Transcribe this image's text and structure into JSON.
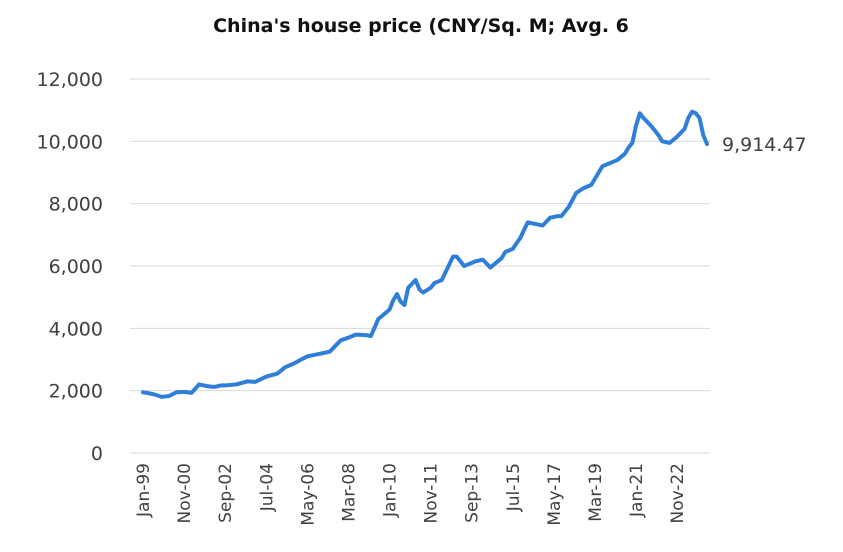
{
  "chart_data": {
    "type": "line",
    "title": "China's house price (CNY/Sq. M; Avg. 6",
    "categories": [
      "Jan-99",
      null,
      null,
      null,
      null,
      null,
      null,
      null,
      null,
      null,
      null,
      "Nov-00",
      null,
      null,
      null,
      null,
      null,
      null,
      null,
      null,
      null,
      null,
      "Sep-02",
      null,
      null,
      null,
      null,
      null,
      null,
      null,
      null,
      null,
      null,
      "Jul-04",
      null,
      null,
      null,
      null,
      null,
      null,
      null,
      null,
      null,
      null,
      "May-06",
      null,
      null,
      null,
      null,
      null,
      null,
      null,
      null,
      null,
      null,
      "Mar-08",
      null,
      null,
      null,
      null,
      null,
      null,
      null,
      null,
      null,
      null,
      "Jan-10",
      null,
      null,
      null,
      null,
      null,
      null,
      null,
      null,
      null,
      null,
      "Nov-11",
      null,
      null,
      null,
      null,
      null,
      null,
      null,
      null,
      null,
      null,
      "Sep-13",
      null,
      null,
      null,
      null,
      null,
      null,
      null,
      null,
      null,
      null,
      "Jul-15",
      null,
      null,
      null,
      null,
      null,
      null,
      null,
      null,
      null,
      null,
      "May-17",
      null,
      null,
      null,
      null,
      null,
      null,
      null,
      null,
      null,
      null,
      "Mar-19",
      null,
      null,
      null,
      null,
      null,
      null,
      null,
      null,
      null,
      null,
      "Jan-21",
      null,
      null,
      null,
      null,
      null,
      null,
      null,
      null,
      null,
      null,
      "Nov-22",
      null,
      null,
      null,
      null,
      null,
      null,
      null,
      null
    ],
    "series": [
      {
        "color": "#2f7ed8",
        "values": [
          1950,
          1930,
          1905,
          1880,
          1840,
          1800,
          1815,
          1830,
          1890,
          1950,
          1955,
          1960,
          1945,
          1930,
          2065,
          2200,
          2175,
          2150,
          2135,
          2120,
          2145,
          2170,
          2170,
          2180,
          2190,
          2200,
          2235,
          2265,
          2300,
          2290,
          2280,
          2335,
          2395,
          2450,
          2485,
          2515,
          2550,
          2650,
          2750,
          2800,
          2850,
          2910,
          2975,
          3040,
          3100,
          3125,
          3150,
          3175,
          3200,
          3225,
          3250,
          3375,
          3500,
          3620,
          3660,
          3700,
          3750,
          3800,
          3795,
          3785,
          3780,
          3750,
          4025,
          4300,
          4400,
          4500,
          4600,
          4900,
          5100,
          4850,
          4750,
          5300,
          5425,
          5550,
          5250,
          5150,
          5225,
          5300,
          5450,
          5500,
          5550,
          5800,
          6050,
          6300,
          6300,
          6150,
          6000,
          6050,
          6100,
          6150,
          6175,
          6200,
          6075,
          5950,
          6050,
          6150,
          6250,
          6450,
          6500,
          6550,
          6725,
          6900,
          7150,
          7400,
          7375,
          7350,
          7325,
          7300,
          7425,
          7550,
          7575,
          7600,
          7600,
          7750,
          7900,
          8125,
          8350,
          8425,
          8500,
          8550,
          8600,
          8800,
          9000,
          9200,
          9250,
          9300,
          9350,
          9400,
          9500,
          9600,
          9800,
          9950,
          10500,
          10900,
          10750,
          10625,
          10500,
          10350,
          10200,
          10000,
          9975,
          9950,
          10050,
          10150,
          10275,
          10400,
          10750,
          10950,
          10900,
          10750,
          10200,
          9914.47
        ],
        "value_labels": [
          null,
          null,
          null,
          null,
          null,
          null,
          null,
          null,
          null,
          null,
          null,
          null,
          null,
          null,
          null,
          null,
          null,
          null,
          null,
          null,
          null,
          null,
          null,
          null,
          null,
          null,
          null,
          null,
          null,
          null,
          null,
          null,
          null,
          null,
          null,
          null,
          null,
          null,
          null,
          null,
          null,
          null,
          null,
          null,
          null,
          null,
          null,
          null,
          null,
          null,
          null,
          null,
          null,
          null,
          null,
          null,
          null,
          null,
          null,
          null,
          null,
          null,
          null,
          null,
          null,
          null,
          null,
          null,
          null,
          null,
          null,
          null,
          null,
          null,
          null,
          null,
          null,
          null,
          null,
          null,
          null,
          null,
          null,
          null,
          null,
          null,
          null,
          null,
          null,
          null,
          null,
          null,
          null,
          null,
          null,
          null,
          null,
          null,
          null,
          null,
          null,
          null,
          null,
          null,
          null,
          null,
          null,
          null,
          null,
          null,
          null,
          null,
          null,
          null,
          null,
          null,
          null,
          null,
          null,
          null,
          null,
          null,
          null,
          null,
          null,
          null,
          null,
          null,
          null,
          null,
          null,
          null,
          null,
          null,
          null,
          null,
          null,
          null,
          null,
          null,
          null,
          null,
          null,
          null,
          null,
          null,
          null,
          null,
          null,
          null,
          null,
          "9,914.47"
        ]
      }
    ],
    "ylim": [
      0,
      12000
    ],
    "yticks": [
      0,
      {
        "value": 2000,
        "label": "2,000"
      },
      {
        "value": 4000,
        "label": "4,000"
      },
      {
        "value": 6000,
        "label": "6,000"
      },
      {
        "value": 8000,
        "label": "8,000"
      },
      {
        "value": 10000,
        "label": "10,000"
      },
      {
        "value": 12000,
        "label": "12,000"
      }
    ],
    "grid": true
  }
}
